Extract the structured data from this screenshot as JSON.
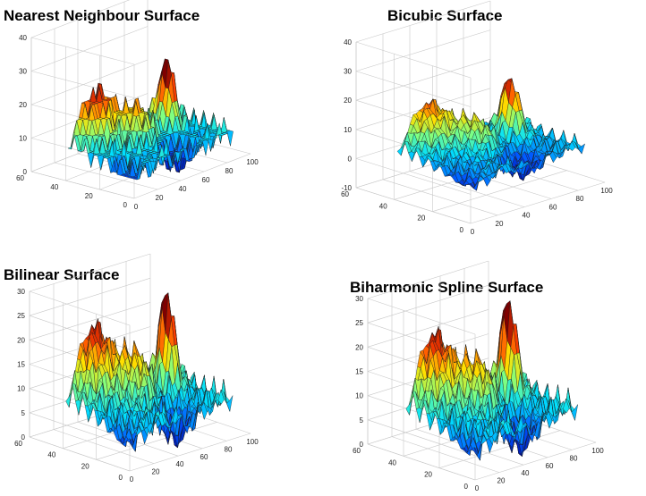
{
  "chart_data": [
    {
      "type": "surface",
      "title": "Nearest Neighbour Surface",
      "x_ticks": [
        "0",
        "20",
        "40",
        "60",
        "80",
        "100"
      ],
      "y_ticks": [
        "0",
        "20",
        "40",
        "60"
      ],
      "z_ticks": [
        "0",
        "10",
        "20",
        "30",
        "40"
      ],
      "xlim": [
        0,
        100
      ],
      "ylim": [
        0,
        60
      ],
      "zlim": [
        0,
        40
      ],
      "grid": true,
      "colormap": [
        "#00008f",
        "#0050ff",
        "#00e0ff",
        "#80ff80",
        "#ffe000",
        "#ff4000",
        "#800000"
      ]
    },
    {
      "type": "surface",
      "title": "Bicubic Surface",
      "x_ticks": [
        "0",
        "20",
        "40",
        "60",
        "80",
        "100"
      ],
      "y_ticks": [
        "0",
        "20",
        "40",
        "60"
      ],
      "z_ticks": [
        "-10",
        "0",
        "10",
        "20",
        "30",
        "40"
      ],
      "xlim": [
        0,
        100
      ],
      "ylim": [
        0,
        60
      ],
      "zlim": [
        -10,
        40
      ],
      "grid": true,
      "colormap": [
        "#00008f",
        "#0050ff",
        "#00e0ff",
        "#80ff80",
        "#ffe000",
        "#ff4000",
        "#800000"
      ]
    },
    {
      "type": "surface",
      "title": "Bilinear Surface",
      "x_ticks": [
        "0",
        "20",
        "40",
        "60",
        "80",
        "100"
      ],
      "y_ticks": [
        "0",
        "20",
        "40",
        "60"
      ],
      "z_ticks": [
        "0",
        "5",
        "10",
        "15",
        "20",
        "25",
        "30"
      ],
      "xlim": [
        0,
        100
      ],
      "ylim": [
        0,
        60
      ],
      "zlim": [
        0,
        30
      ],
      "grid": true,
      "colormap": [
        "#00008f",
        "#0050ff",
        "#00e0ff",
        "#80ff80",
        "#ffe000",
        "#ff4000",
        "#800000"
      ]
    },
    {
      "type": "surface",
      "title": "Biharmonic Spline Surface",
      "x_ticks": [
        "0",
        "20",
        "40",
        "60",
        "80",
        "100"
      ],
      "y_ticks": [
        "0",
        "20",
        "40",
        "60"
      ],
      "z_ticks": [
        "0",
        "5",
        "10",
        "15",
        "20",
        "25",
        "30"
      ],
      "xlim": [
        0,
        100
      ],
      "ylim": [
        0,
        60
      ],
      "zlim": [
        0,
        30
      ],
      "grid": true,
      "colormap": [
        "#00008f",
        "#0050ff",
        "#00e0ff",
        "#80ff80",
        "#ffe000",
        "#ff4000",
        "#800000"
      ]
    }
  ]
}
